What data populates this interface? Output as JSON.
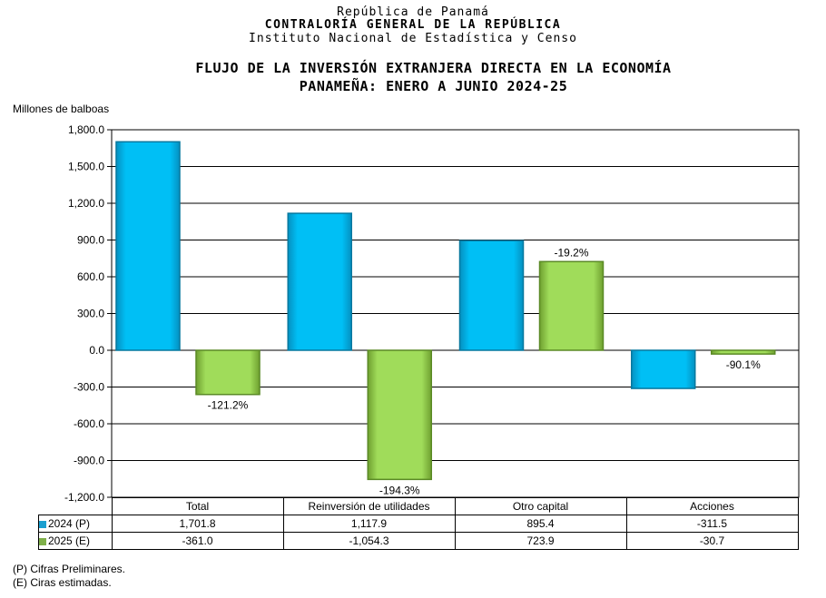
{
  "header": {
    "line1": "República de Panamá",
    "line2": "CONTRALORÍA GENERAL DE LA REPÚBLICA",
    "line3": "Instituto Nacional de Estadística y Censo"
  },
  "footnotes": [
    "(P) Cifras Preliminares.",
    "(E) Ciras estimadas."
  ],
  "chart_data": {
    "type": "bar",
    "title": "FLUJO DE LA INVERSIÓN EXTRANJERA DIRECTA EN LA ECONOMÍA PANAMEÑA: ENERO A JUNIO 2024-25",
    "title_lines": [
      "FLUJO DE LA INVERSIÓN EXTRANJERA DIRECTA EN LA ECONOMÍA",
      "PANAMEÑA: ENERO A JUNIO 2024-25"
    ],
    "ylabel": "Millones de balboas",
    "ylim": [
      -1200,
      1800
    ],
    "yticks": [
      1800,
      1500,
      1200,
      900,
      600,
      300,
      0,
      -300,
      -600,
      -900,
      -1200
    ],
    "ytick_labels": [
      "1,800.0",
      "1,500.0",
      "1,200.0",
      "900.0",
      "600.0",
      "300.0",
      "0.0",
      "-300.0",
      "-600.0",
      "-900.0",
      "-1,200.0"
    ],
    "categories": [
      "Total",
      "Reinversión de utilidades",
      "Otro capital",
      "Acciones"
    ],
    "series": [
      {
        "name": "2024 (P)",
        "color": "#00b8f0",
        "values": [
          1701.8,
          1117.9,
          895.4,
          -311.5
        ],
        "labels": [
          "1,701.8",
          "1,117.9",
          "895.4",
          "-311.5"
        ]
      },
      {
        "name": "2025 (E)",
        "color": "#92d050",
        "values": [
          -361.0,
          -1054.3,
          723.9,
          -30.7
        ],
        "labels": [
          "-361.0",
          "-1,054.3",
          "723.9",
          "-30.7"
        ]
      }
    ],
    "annotations": [
      "-121.2%",
      "-194.3%",
      "-19.2%",
      "-90.1%"
    ],
    "grid": true
  }
}
